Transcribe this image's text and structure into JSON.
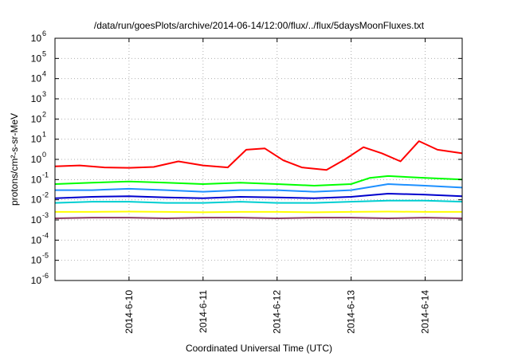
{
  "chart_data": {
    "type": "line",
    "title": "/data/run/goesPlots/archive/2014-06-14/12:00/flux/../flux/5daysMoonFluxes.txt",
    "xlabel": "Coordinated Universal Time (UTC)",
    "ylabel": "protons/cm²-s-sr-MeV",
    "yscale": "log",
    "ylim": [
      1e-06,
      1000000.0
    ],
    "y_ticks": [
      {
        "exp": "-6",
        "value": 1e-06
      },
      {
        "exp": "-5",
        "value": 1e-05
      },
      {
        "exp": "-4",
        "value": 0.0001
      },
      {
        "exp": "-3",
        "value": 0.001
      },
      {
        "exp": "-2",
        "value": 0.01
      },
      {
        "exp": "-1",
        "value": 0.1
      },
      {
        "exp": "0",
        "value": 1
      },
      {
        "exp": "1",
        "value": 10
      },
      {
        "exp": "2",
        "value": 100
      },
      {
        "exp": "3",
        "value": 1000
      },
      {
        "exp": "4",
        "value": 10000
      },
      {
        "exp": "5",
        "value": 100000
      },
      {
        "exp": "6",
        "value": 1000000
      }
    ],
    "xlim": [
      "2014-06-09T00:00",
      "2014-06-14T12:00"
    ],
    "x_ticks": [
      {
        "label": "2014-6-10",
        "value": "2014-06-10T00:00"
      },
      {
        "label": "2014-6-11",
        "value": "2014-06-11T00:00"
      },
      {
        "label": "2014-6-12",
        "value": "2014-06-12T00:00"
      },
      {
        "label": "2014-6-13",
        "value": "2014-06-13T00:00"
      },
      {
        "label": "2014-6-14",
        "value": "2014-06-14T00:00"
      }
    ],
    "grid": true,
    "series": [
      {
        "color": "#ff0000",
        "x": [
          "2014-06-09T00:00",
          "2014-06-09T08:00",
          "2014-06-09T16:00",
          "2014-06-10T00:00",
          "2014-06-10T08:00",
          "2014-06-10T16:00",
          "2014-06-11T00:00",
          "2014-06-11T08:00",
          "2014-06-11T14:00",
          "2014-06-11T20:00",
          "2014-06-12T02:00",
          "2014-06-12T08:00",
          "2014-06-12T16:00",
          "2014-06-12T22:00",
          "2014-06-13T04:00",
          "2014-06-13T10:00",
          "2014-06-13T16:00",
          "2014-06-13T22:00",
          "2014-06-14T04:00",
          "2014-06-14T12:00"
        ],
        "y": [
          0.45,
          0.5,
          0.4,
          0.38,
          0.42,
          0.8,
          0.5,
          0.4,
          3,
          3.5,
          0.9,
          0.4,
          0.3,
          1,
          4,
          2,
          0.8,
          8,
          3,
          2
        ]
      },
      {
        "color": "#00ff00",
        "x": [
          "2014-06-09T00:00",
          "2014-06-09T12:00",
          "2014-06-10T00:00",
          "2014-06-10T12:00",
          "2014-06-11T00:00",
          "2014-06-11T12:00",
          "2014-06-12T00:00",
          "2014-06-12T12:00",
          "2014-06-13T00:00",
          "2014-06-13T06:00",
          "2014-06-13T12:00",
          "2014-06-14T00:00",
          "2014-06-14T12:00"
        ],
        "y": [
          0.06,
          0.07,
          0.08,
          0.07,
          0.06,
          0.07,
          0.06,
          0.05,
          0.06,
          0.12,
          0.15,
          0.12,
          0.1
        ]
      },
      {
        "color": "#1e90ff",
        "x": [
          "2014-06-09T00:00",
          "2014-06-09T12:00",
          "2014-06-10T00:00",
          "2014-06-10T12:00",
          "2014-06-11T00:00",
          "2014-06-11T12:00",
          "2014-06-12T00:00",
          "2014-06-12T12:00",
          "2014-06-13T00:00",
          "2014-06-13T12:00",
          "2014-06-14T00:00",
          "2014-06-14T12:00"
        ],
        "y": [
          0.03,
          0.03,
          0.035,
          0.03,
          0.025,
          0.03,
          0.03,
          0.025,
          0.03,
          0.06,
          0.05,
          0.04
        ]
      },
      {
        "color": "#0000cd",
        "x": [
          "2014-06-09T00:00",
          "2014-06-09T12:00",
          "2014-06-10T00:00",
          "2014-06-10T12:00",
          "2014-06-11T00:00",
          "2014-06-11T12:00",
          "2014-06-12T00:00",
          "2014-06-12T12:00",
          "2014-06-13T00:00",
          "2014-06-13T12:00",
          "2014-06-14T00:00",
          "2014-06-14T12:00"
        ],
        "y": [
          0.012,
          0.014,
          0.015,
          0.013,
          0.012,
          0.014,
          0.013,
          0.012,
          0.014,
          0.02,
          0.018,
          0.015
        ]
      },
      {
        "color": "#00ced1",
        "x": [
          "2014-06-09T00:00",
          "2014-06-09T12:00",
          "2014-06-10T00:00",
          "2014-06-10T12:00",
          "2014-06-11T00:00",
          "2014-06-11T12:00",
          "2014-06-12T00:00",
          "2014-06-12T12:00",
          "2014-06-13T00:00",
          "2014-06-13T12:00",
          "2014-06-14T00:00",
          "2014-06-14T12:00"
        ],
        "y": [
          0.007,
          0.008,
          0.008,
          0.007,
          0.007,
          0.008,
          0.007,
          0.007,
          0.008,
          0.009,
          0.009,
          0.008
        ]
      },
      {
        "color": "#ffff00",
        "x": [
          "2014-06-09T00:00",
          "2014-06-09T12:00",
          "2014-06-10T00:00",
          "2014-06-10T12:00",
          "2014-06-11T00:00",
          "2014-06-11T12:00",
          "2014-06-12T00:00",
          "2014-06-12T12:00",
          "2014-06-13T00:00",
          "2014-06-13T12:00",
          "2014-06-14T00:00",
          "2014-06-14T12:00"
        ],
        "y": [
          0.0025,
          0.0025,
          0.0026,
          0.0025,
          0.0024,
          0.0025,
          0.0025,
          0.0024,
          0.0025,
          0.0026,
          0.0025,
          0.0025
        ]
      },
      {
        "color": "#8b3a62",
        "x": [
          "2014-06-09T00:00",
          "2014-06-09T12:00",
          "2014-06-10T00:00",
          "2014-06-10T12:00",
          "2014-06-11T00:00",
          "2014-06-11T12:00",
          "2014-06-12T00:00",
          "2014-06-12T12:00",
          "2014-06-13T00:00",
          "2014-06-13T12:00",
          "2014-06-14T00:00",
          "2014-06-14T12:00"
        ],
        "y": [
          0.0012,
          0.0013,
          0.0013,
          0.0012,
          0.0013,
          0.0013,
          0.0012,
          0.0013,
          0.0013,
          0.0012,
          0.0013,
          0.0012
        ]
      }
    ]
  }
}
